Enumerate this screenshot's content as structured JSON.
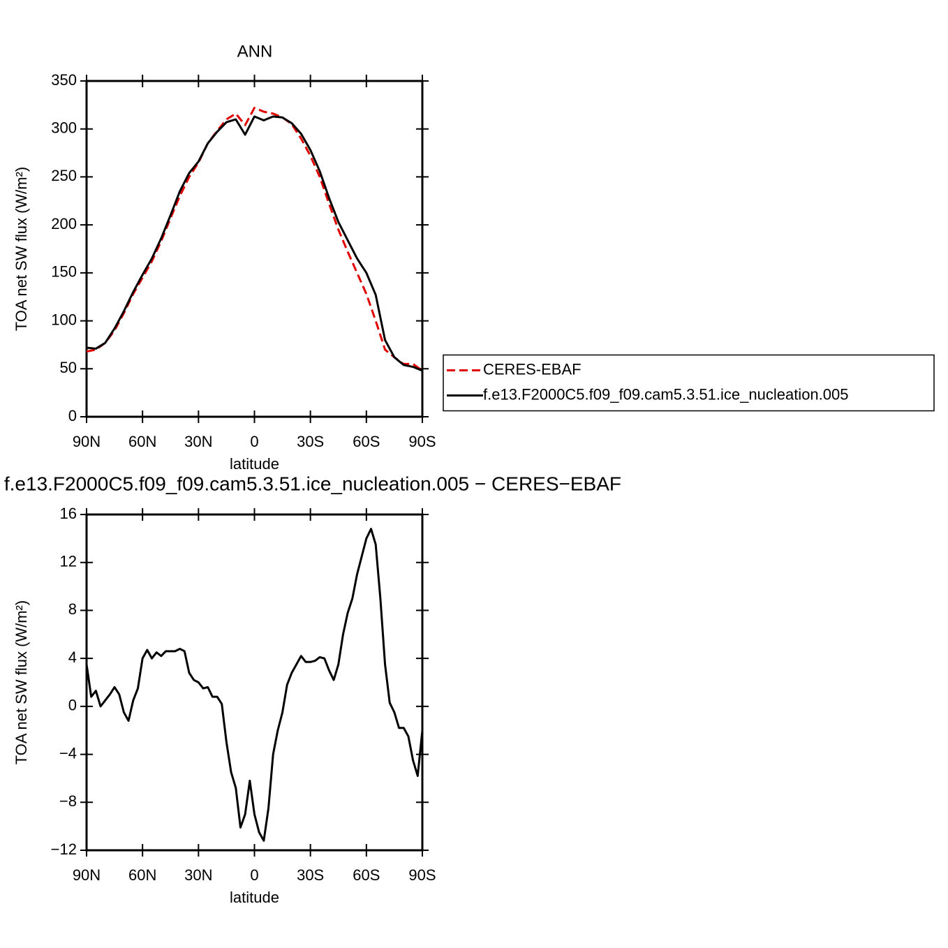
{
  "chart_data": [
    {
      "type": "line",
      "title": "ANN",
      "xlabel": "latitude",
      "ylabel": "TOA net SW flux (W/m²)",
      "x": [
        90,
        85,
        80,
        75,
        70,
        65,
        60,
        55,
        50,
        45,
        40,
        35,
        30,
        25,
        20,
        15,
        10,
        5,
        0,
        -5,
        -10,
        -15,
        -20,
        -25,
        -30,
        -35,
        -40,
        -45,
        -50,
        -55,
        -60,
        -65,
        -70,
        -75,
        -80,
        -85,
        -90
      ],
      "series": [
        {
          "name": "CERES-EBAF",
          "color": "#e00000",
          "dash": true,
          "values": [
            68,
            70,
            77,
            90,
            108,
            128,
            145,
            162,
            183,
            207,
            230,
            250,
            265,
            285,
            298,
            310,
            316,
            304,
            322,
            318,
            316,
            312,
            305,
            290,
            272,
            250,
            222,
            195,
            172,
            150,
            128,
            100,
            70,
            62,
            55,
            55,
            48
          ]
        },
        {
          "name": "f.e13.F2000C5.f09_f09.cam5.3.51.ice_nucleation.005",
          "color": "#000000",
          "dash": false,
          "values": [
            72,
            71,
            77,
            92,
            110,
            130,
            148,
            165,
            186,
            210,
            235,
            254,
            266,
            285,
            297,
            307,
            310,
            294,
            313,
            309,
            313,
            312,
            306,
            295,
            278,
            256,
            228,
            203,
            184,
            165,
            150,
            127,
            80,
            62,
            54,
            52,
            48
          ]
        }
      ],
      "xlim": [
        90,
        -90
      ],
      "xticks": [
        {
          "value": 90,
          "label": "90N"
        },
        {
          "value": 60,
          "label": "60N"
        },
        {
          "value": 30,
          "label": "30N"
        },
        0,
        {
          "value": -30,
          "label": "30S"
        },
        {
          "value": -60,
          "label": "60S"
        },
        {
          "value": -90,
          "label": "90S"
        }
      ],
      "ylim": [
        0,
        350
      ],
      "yticks": [
        0,
        50,
        100,
        150,
        200,
        250,
        300,
        350
      ],
      "legend": "right"
    },
    {
      "type": "line",
      "title": "f.e13.F2000C5.f09_f09.cam5.3.51.ice_nucleation.005 − CERES−EBAF",
      "xlabel": "latitude",
      "ylabel": "TOA net SW flux (W/m²)",
      "x": [
        90,
        87.5,
        85,
        82.5,
        80,
        77.5,
        75,
        72.5,
        70,
        67.5,
        65,
        62.5,
        60,
        57.5,
        55,
        52.5,
        50,
        47.5,
        45,
        42.5,
        40,
        37.5,
        35,
        32.5,
        30,
        27.5,
        25,
        22.5,
        20,
        17.5,
        15,
        12.5,
        10,
        7.5,
        5,
        2.5,
        0,
        -2.5,
        -5,
        -7.5,
        -10,
        -12.5,
        -15,
        -17.5,
        -20,
        -22.5,
        -25,
        -27.5,
        -30,
        -32.5,
        -35,
        -37.5,
        -40,
        -42.5,
        -45,
        -47.5,
        -50,
        -52.5,
        -55,
        -57.5,
        -60,
        -62.5,
        -65,
        -67.5,
        -70,
        -72.5,
        -75,
        -77.5,
        -80,
        -82.5,
        -85,
        -87.5,
        -90
      ],
      "series": [
        {
          "color": "#000000",
          "dash": false,
          "values": [
            3.5,
            0.8,
            1.3,
            0,
            0.5,
            1.0,
            1.6,
            1.0,
            -0.5,
            -1.2,
            0.5,
            1.5,
            4.0,
            4.7,
            4.0,
            4.5,
            4.2,
            4.6,
            4.6,
            4.6,
            4.8,
            4.6,
            2.8,
            2.2,
            2.0,
            1.5,
            1.6,
            0.8,
            0.8,
            0.2,
            -3.0,
            -5.5,
            -6.8,
            -10.1,
            -9.0,
            -6.2,
            -9.0,
            -10.5,
            -11.2,
            -8.5,
            -4.0,
            -2.0,
            -0.5,
            1.8,
            2.8,
            3.5,
            4.2,
            3.7,
            3.7,
            3.8,
            4.1,
            4.0,
            3.0,
            2.2,
            3.5,
            6.0,
            7.8,
            9.0,
            11.0,
            12.5,
            14.0,
            14.8,
            13.5,
            9.0,
            3.5,
            0.3,
            -0.5,
            -1.8,
            -1.8,
            -2.5,
            -4.5,
            -5.8,
            -2.0
          ]
        }
      ],
      "xlim": [
        90,
        -90
      ],
      "xticks": [
        {
          "value": 90,
          "label": "90N"
        },
        {
          "value": 60,
          "label": "60N"
        },
        {
          "value": 30,
          "label": "30N"
        },
        0,
        {
          "value": -30,
          "label": "30S"
        },
        {
          "value": -60,
          "label": "60S"
        },
        {
          "value": -90,
          "label": "90S"
        }
      ],
      "ylim": [
        -12,
        16
      ],
      "yticks": [
        {
          "value": -12,
          "label": "−12"
        },
        {
          "value": -8,
          "label": "−8"
        },
        {
          "value": -4,
          "label": "−4"
        },
        0,
        4,
        8,
        12,
        16
      ]
    }
  ]
}
